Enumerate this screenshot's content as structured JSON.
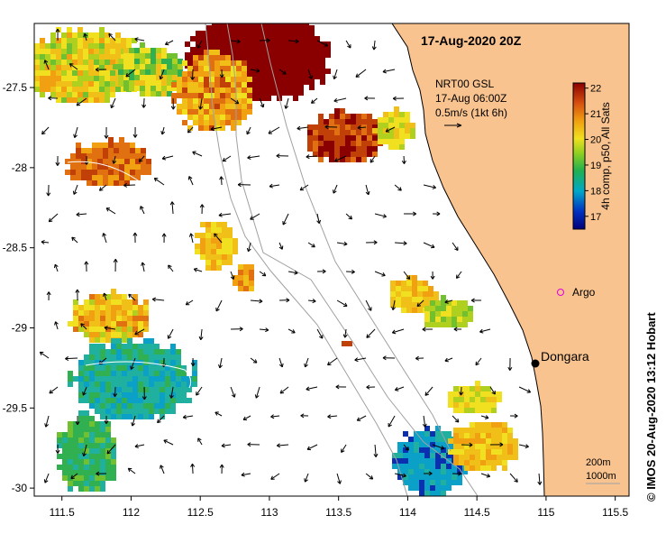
{
  "title": "17-Aug-2020 20Z",
  "axes": {
    "x_ticks": [
      "111.5",
      "112",
      "112.5",
      "113",
      "113.5",
      "114",
      "114.5",
      "115",
      "115.5"
    ],
    "y_ticks": [
      "-27.5",
      "-28",
      "-28.5",
      "-29",
      "-29.5",
      "-30"
    ],
    "lon_range": [
      111.3,
      115.6
    ],
    "lat_range": [
      -30.05,
      -27.1
    ]
  },
  "current_legend": {
    "line1": "NRT00 GSL",
    "line2": "17-Aug 06:00Z",
    "line3": "0.5m/s (1kt 6h)"
  },
  "colorbar": {
    "label": "4h comp, p50, All Sats",
    "ticks": [
      "22",
      "21",
      "20",
      "19",
      "18",
      "17"
    ],
    "min": 16.5,
    "max": 22.2
  },
  "places": {
    "argo": "Argo",
    "dongara": "Dongara"
  },
  "isobaths": {
    "shallow": "200m",
    "deep": "1000m"
  },
  "credit": "©  IMOS 20-Aug-2020 13:12 Hobart",
  "colors": {
    "land": "#f9c38f",
    "isobath": "#a0a0a0",
    "argo": "#e000e0"
  }
}
